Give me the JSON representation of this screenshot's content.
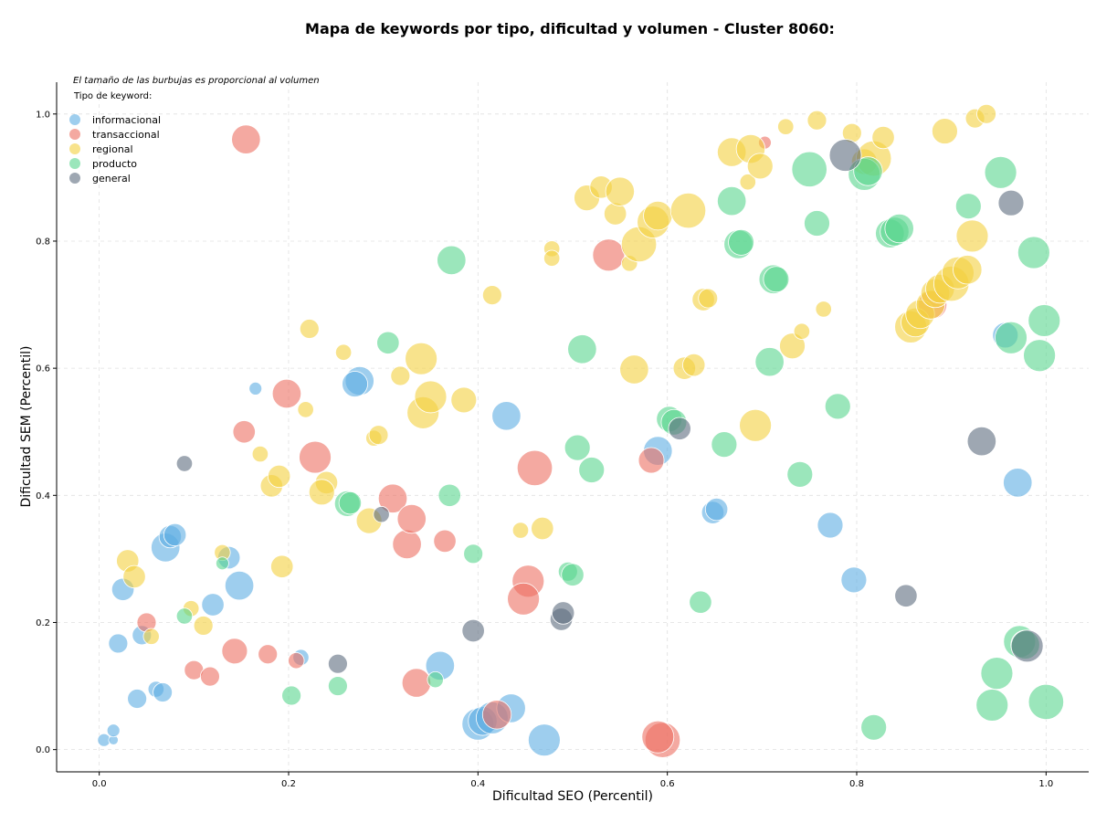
{
  "chart_data": {
    "type": "scatter",
    "title": "Mapa de keywords por tipo, dificultad y volumen - Cluster 8060:",
    "xlabel": "Dificultad SEO (Percentil)",
    "ylabel": "Dificultad SEM (Percentil)",
    "xlim": [
      -0.045,
      1.045
    ],
    "ylim": [
      -0.035,
      1.05
    ],
    "xticks": [
      "0.0",
      "0.2",
      "0.4",
      "0.6",
      "0.8",
      "1.0"
    ],
    "yticks": [
      "0.0",
      "0.2",
      "0.4",
      "0.6",
      "0.8",
      "1.0"
    ],
    "grid": true,
    "legend": {
      "title": "Tipo de keyword:",
      "placement": "top-left",
      "note": "El tamaño de las burbujas es proporcional al volumen"
    },
    "series": [
      {
        "name": "informacional",
        "color": "#5dade2",
        "points": [
          [
            0.005,
            0.015,
            4
          ],
          [
            0.015,
            0.015,
            3
          ],
          [
            0.015,
            0.03,
            4
          ],
          [
            0.02,
            0.167,
            6
          ],
          [
            0.025,
            0.252,
            7
          ],
          [
            0.045,
            0.18,
            6
          ],
          [
            0.04,
            0.08,
            6
          ],
          [
            0.06,
            0.095,
            5
          ],
          [
            0.067,
            0.09,
            6
          ],
          [
            0.07,
            0.318,
            9
          ],
          [
            0.075,
            0.335,
            7
          ],
          [
            0.08,
            0.338,
            7
          ],
          [
            0.12,
            0.228,
            7
          ],
          [
            0.137,
            0.302,
            7
          ],
          [
            0.148,
            0.258,
            9
          ],
          [
            0.165,
            0.568,
            4
          ],
          [
            0.213,
            0.145,
            5
          ],
          [
            0.275,
            0.58,
            9
          ],
          [
            0.27,
            0.575,
            8
          ],
          [
            0.36,
            0.132,
            9
          ],
          [
            0.43,
            0.525,
            9
          ],
          [
            0.4,
            0.04,
            10
          ],
          [
            0.405,
            0.045,
            9
          ],
          [
            0.415,
            0.05,
            10
          ],
          [
            0.435,
            0.065,
            9
          ],
          [
            0.47,
            0.015,
            10
          ],
          [
            0.59,
            0.47,
            9
          ],
          [
            0.648,
            0.373,
            7
          ],
          [
            0.652,
            0.378,
            7
          ],
          [
            0.772,
            0.353,
            8
          ],
          [
            0.797,
            0.267,
            8
          ],
          [
            0.957,
            0.652,
            8
          ],
          [
            0.97,
            0.42,
            9
          ]
        ]
      },
      {
        "name": "transaccional",
        "color": "#ec7063",
        "points": [
          [
            0.05,
            0.2,
            6
          ],
          [
            0.1,
            0.125,
            6
          ],
          [
            0.117,
            0.115,
            6
          ],
          [
            0.143,
            0.155,
            8
          ],
          [
            0.155,
            0.96,
            9
          ],
          [
            0.153,
            0.5,
            7
          ],
          [
            0.178,
            0.15,
            6
          ],
          [
            0.198,
            0.56,
            9
          ],
          [
            0.208,
            0.14,
            5
          ],
          [
            0.228,
            0.46,
            10
          ],
          [
            0.31,
            0.395,
            9
          ],
          [
            0.325,
            0.323,
            9
          ],
          [
            0.33,
            0.363,
            9
          ],
          [
            0.335,
            0.105,
            9
          ],
          [
            0.365,
            0.328,
            7
          ],
          [
            0.42,
            0.055,
            9
          ],
          [
            0.453,
            0.265,
            10
          ],
          [
            0.448,
            0.237,
            10
          ],
          [
            0.46,
            0.443,
            11
          ],
          [
            0.538,
            0.778,
            10
          ],
          [
            0.583,
            0.455,
            8
          ],
          [
            0.595,
            0.015,
            11
          ],
          [
            0.59,
            0.02,
            10
          ],
          [
            0.703,
            0.955,
            4
          ],
          [
            0.88,
            0.7,
            9
          ]
        ]
      },
      {
        "name": "regional",
        "color": "#f4d03f",
        "points": [
          [
            0.03,
            0.297,
            7
          ],
          [
            0.037,
            0.272,
            7
          ],
          [
            0.055,
            0.178,
            5
          ],
          [
            0.097,
            0.222,
            5
          ],
          [
            0.11,
            0.195,
            6
          ],
          [
            0.13,
            0.31,
            5
          ],
          [
            0.17,
            0.465,
            5
          ],
          [
            0.182,
            0.415,
            7
          ],
          [
            0.19,
            0.43,
            7
          ],
          [
            0.193,
            0.288,
            7
          ],
          [
            0.222,
            0.662,
            6
          ],
          [
            0.218,
            0.535,
            5
          ],
          [
            0.24,
            0.42,
            7
          ],
          [
            0.235,
            0.405,
            8
          ],
          [
            0.258,
            0.625,
            5
          ],
          [
            0.285,
            0.36,
            8
          ],
          [
            0.29,
            0.49,
            5
          ],
          [
            0.295,
            0.495,
            6
          ],
          [
            0.318,
            0.588,
            6
          ],
          [
            0.34,
            0.615,
            10
          ],
          [
            0.342,
            0.53,
            10
          ],
          [
            0.35,
            0.555,
            10
          ],
          [
            0.385,
            0.55,
            8
          ],
          [
            0.415,
            0.715,
            6
          ],
          [
            0.445,
            0.345,
            5
          ],
          [
            0.468,
            0.348,
            7
          ],
          [
            0.478,
            0.788,
            5
          ],
          [
            0.478,
            0.773,
            5
          ],
          [
            0.515,
            0.868,
            8
          ],
          [
            0.53,
            0.885,
            7
          ],
          [
            0.545,
            0.843,
            7
          ],
          [
            0.55,
            0.878,
            9
          ],
          [
            0.56,
            0.765,
            5
          ],
          [
            0.57,
            0.795,
            11
          ],
          [
            0.565,
            0.598,
            9
          ],
          [
            0.585,
            0.83,
            10
          ],
          [
            0.59,
            0.84,
            9
          ],
          [
            0.622,
            0.848,
            11
          ],
          [
            0.618,
            0.6,
            7
          ],
          [
            0.628,
            0.605,
            7
          ],
          [
            0.638,
            0.708,
            7
          ],
          [
            0.643,
            0.71,
            6
          ],
          [
            0.668,
            0.94,
            9
          ],
          [
            0.688,
            0.945,
            9
          ],
          [
            0.685,
            0.893,
            5
          ],
          [
            0.698,
            0.918,
            8
          ],
          [
            0.693,
            0.51,
            10
          ],
          [
            0.725,
            0.98,
            5
          ],
          [
            0.732,
            0.635,
            8
          ],
          [
            0.742,
            0.658,
            5
          ],
          [
            0.758,
            0.99,
            6
          ],
          [
            0.765,
            0.693,
            5
          ],
          [
            0.795,
            0.97,
            6
          ],
          [
            0.808,
            0.925,
            8
          ],
          [
            0.818,
            0.93,
            11
          ],
          [
            0.828,
            0.963,
            7
          ],
          [
            0.857,
            0.665,
            10
          ],
          [
            0.862,
            0.672,
            9
          ],
          [
            0.867,
            0.685,
            9
          ],
          [
            0.878,
            0.7,
            9
          ],
          [
            0.883,
            0.718,
            9
          ],
          [
            0.888,
            0.725,
            9
          ],
          [
            0.893,
            0.973,
            8
          ],
          [
            0.9,
            0.733,
            11
          ],
          [
            0.907,
            0.75,
            10
          ],
          [
            0.917,
            0.755,
            9
          ],
          [
            0.922,
            0.808,
            10
          ],
          [
            0.925,
            0.993,
            6
          ],
          [
            0.937,
            1.0,
            6
          ]
        ]
      },
      {
        "name": "producto",
        "color": "#58d68d",
        "points": [
          [
            0.09,
            0.21,
            5
          ],
          [
            0.13,
            0.293,
            4
          ],
          [
            0.203,
            0.085,
            6
          ],
          [
            0.252,
            0.1,
            6
          ],
          [
            0.262,
            0.387,
            8
          ],
          [
            0.265,
            0.388,
            7
          ],
          [
            0.305,
            0.64,
            7
          ],
          [
            0.355,
            0.11,
            5
          ],
          [
            0.372,
            0.77,
            9
          ],
          [
            0.37,
            0.4,
            7
          ],
          [
            0.395,
            0.308,
            6
          ],
          [
            0.495,
            0.28,
            6
          ],
          [
            0.5,
            0.275,
            7
          ],
          [
            0.505,
            0.475,
            8
          ],
          [
            0.51,
            0.63,
            9
          ],
          [
            0.52,
            0.44,
            8
          ],
          [
            0.602,
            0.52,
            8
          ],
          [
            0.607,
            0.515,
            8
          ],
          [
            0.635,
            0.232,
            7
          ],
          [
            0.66,
            0.48,
            8
          ],
          [
            0.668,
            0.863,
            9
          ],
          [
            0.675,
            0.795,
            9
          ],
          [
            0.678,
            0.798,
            8
          ],
          [
            0.712,
            0.74,
            9
          ],
          [
            0.715,
            0.74,
            8
          ],
          [
            0.708,
            0.61,
            9
          ],
          [
            0.74,
            0.433,
            8
          ],
          [
            0.75,
            0.913,
            11
          ],
          [
            0.758,
            0.828,
            8
          ],
          [
            0.78,
            0.54,
            8
          ],
          [
            0.808,
            0.905,
            10
          ],
          [
            0.812,
            0.91,
            9
          ],
          [
            0.818,
            0.035,
            8
          ],
          [
            0.835,
            0.812,
            9
          ],
          [
            0.84,
            0.815,
            9
          ],
          [
            0.845,
            0.82,
            9
          ],
          [
            0.918,
            0.855,
            8
          ],
          [
            0.943,
            0.07,
            10
          ],
          [
            0.948,
            0.12,
            10
          ],
          [
            0.952,
            0.908,
            10
          ],
          [
            0.963,
            0.648,
            10
          ],
          [
            0.972,
            0.17,
            10
          ],
          [
            0.978,
            0.165,
            9
          ],
          [
            0.987,
            0.782,
            10
          ],
          [
            0.993,
            0.62,
            10
          ],
          [
            0.998,
            0.675,
            10
          ],
          [
            1.0,
            0.075,
            11
          ]
        ]
      },
      {
        "name": "general",
        "color": "#5d6d7e",
        "points": [
          [
            0.09,
            0.45,
            5
          ],
          [
            0.252,
            0.135,
            6
          ],
          [
            0.298,
            0.37,
            5
          ],
          [
            0.395,
            0.187,
            7
          ],
          [
            0.488,
            0.205,
            7
          ],
          [
            0.49,
            0.215,
            7
          ],
          [
            0.613,
            0.505,
            7
          ],
          [
            0.788,
            0.935,
            10
          ],
          [
            0.852,
            0.242,
            7
          ],
          [
            0.932,
            0.485,
            9
          ],
          [
            0.963,
            0.86,
            8
          ],
          [
            0.98,
            0.163,
            10
          ]
        ]
      }
    ]
  }
}
